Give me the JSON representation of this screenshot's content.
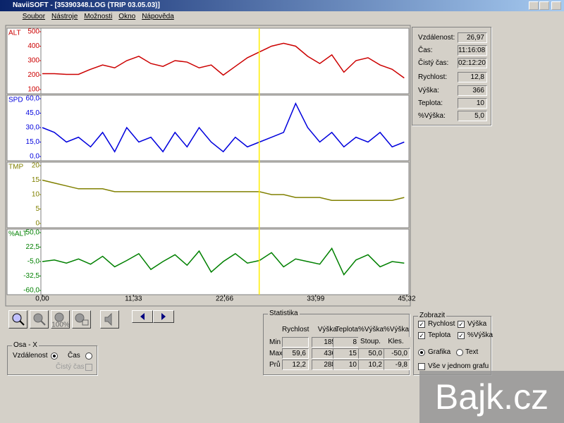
{
  "window": {
    "title": "NaviiSOFT - [35390348.LOG (TRIP 03.05.03)]"
  },
  "menu": [
    "Soubor",
    "Nástroje",
    "Možnosti",
    "Okno",
    "Nápověda"
  ],
  "cursor": 26.97,
  "chart_data": [
    {
      "type": "line",
      "label": "ALT",
      "color": "#cc0000",
      "xlim": [
        0,
        45.32
      ],
      "ylim": [
        100,
        500
      ],
      "yticks": [
        100,
        200,
        300,
        400,
        500
      ],
      "x": [
        0,
        1.5,
        3,
        4.5,
        6,
        7.5,
        9,
        10.5,
        12,
        13.5,
        15,
        16.5,
        18,
        19.5,
        21,
        22.5,
        24,
        25.5,
        27,
        28.5,
        30,
        31.5,
        33,
        34.5,
        36,
        37.5,
        39,
        40.5,
        42,
        43.5,
        45
      ],
      "values": [
        210,
        210,
        205,
        205,
        240,
        270,
        250,
        300,
        330,
        280,
        260,
        300,
        290,
        250,
        270,
        200,
        260,
        320,
        360,
        400,
        420,
        400,
        330,
        280,
        340,
        220,
        300,
        320,
        270,
        240,
        180
      ]
    },
    {
      "type": "line",
      "label": "SPD",
      "color": "#0000dd",
      "xlim": [
        0,
        45.32
      ],
      "ylim": [
        0,
        60
      ],
      "yticks": [
        {
          "value": 0,
          "label": "0,0"
        },
        {
          "value": 15,
          "label": "15,0"
        },
        {
          "value": 30,
          "label": "30,0"
        },
        {
          "value": 45,
          "label": "45,0"
        },
        {
          "value": 60,
          "label": "60,0"
        }
      ],
      "x": [
        0,
        1.5,
        3,
        4.5,
        6,
        7.5,
        9,
        10.5,
        12,
        13.5,
        15,
        16.5,
        18,
        19.5,
        21,
        22.5,
        24,
        25.5,
        27,
        28.5,
        30,
        31.5,
        33,
        34.5,
        36,
        37.5,
        39,
        40.5,
        42,
        43.5,
        45
      ],
      "values": [
        30,
        25,
        15,
        20,
        10,
        25,
        5,
        30,
        15,
        20,
        5,
        25,
        10,
        30,
        15,
        5,
        20,
        10,
        15,
        20,
        25,
        55,
        30,
        15,
        25,
        10,
        20,
        15,
        25,
        10,
        15
      ]
    },
    {
      "type": "line",
      "label": "TMP",
      "color": "#808000",
      "xlim": [
        0,
        45.32
      ],
      "ylim": [
        0,
        20
      ],
      "yticks": [
        0,
        5,
        10,
        15,
        20
      ],
      "x": [
        0,
        1.5,
        3,
        4.5,
        6,
        7.5,
        9,
        10.5,
        12,
        13.5,
        15,
        16.5,
        18,
        19.5,
        21,
        22.5,
        24,
        25.5,
        27,
        28.5,
        30,
        31.5,
        33,
        34.5,
        36,
        37.5,
        39,
        40.5,
        42,
        43.5,
        45
      ],
      "values": [
        15,
        14,
        13,
        12,
        12,
        12,
        11,
        11,
        11,
        11,
        11,
        11,
        11,
        11,
        11,
        11,
        11,
        11,
        11,
        10,
        10,
        9,
        9,
        9,
        8,
        8,
        8,
        8,
        8,
        8,
        9
      ]
    },
    {
      "type": "line",
      "label": "%ALT",
      "color": "#008000",
      "xlim": [
        0,
        45.32
      ],
      "ylim": [
        -60,
        50
      ],
      "yticks": [
        {
          "value": -60,
          "label": "-60,0"
        },
        {
          "value": -32.5,
          "label": "-32,5"
        },
        {
          "value": -5,
          "label": "-5,0"
        },
        {
          "value": 22.5,
          "label": "22,5"
        },
        {
          "value": 50,
          "label": "50,0"
        }
      ],
      "xticks": [
        {
          "value": 0,
          "label": "0,00"
        },
        {
          "value": 11.33,
          "label": "11,33"
        },
        {
          "value": 22.66,
          "label": "22,66"
        },
        {
          "value": 33.99,
          "label": "33,99"
        },
        {
          "value": 45.32,
          "label": "45,32"
        }
      ],
      "x": [
        0,
        1.5,
        3,
        4.5,
        6,
        7.5,
        9,
        10.5,
        12,
        13.5,
        15,
        16.5,
        18,
        19.5,
        21,
        22.5,
        24,
        25.5,
        27,
        28.5,
        30,
        31.5,
        33,
        34.5,
        36,
        37.5,
        39,
        40.5,
        42,
        43.5,
        45
      ],
      "values": [
        -5,
        -2,
        -8,
        0,
        -10,
        5,
        -15,
        -3,
        10,
        -20,
        -5,
        8,
        -12,
        15,
        -25,
        -5,
        10,
        -8,
        -3,
        12,
        -15,
        0,
        -5,
        -10,
        20,
        -30,
        -2,
        8,
        -15,
        -5,
        -8
      ]
    }
  ],
  "info": [
    {
      "label": "Vzdálenost:",
      "value": "26,97"
    },
    {
      "label": "Čas:",
      "value": "11:16:08"
    },
    {
      "label": "Čistý čas:",
      "value": "02:12:20"
    },
    {
      "label": "Rychlost:",
      "value": "12,8"
    },
    {
      "label": "Výška:",
      "value": "366"
    },
    {
      "label": "Teplota:",
      "value": "10"
    },
    {
      "label": "%Výška:",
      "value": "5,0"
    }
  ],
  "toolbar": {
    "zoom_label": "100%"
  },
  "axis_x": {
    "title": "Osa - X",
    "distance": "Vzdálenost",
    "time": "Čas",
    "net_time": "Čistý čas"
  },
  "statistics": {
    "title": "Statistika",
    "columns": [
      "Rychlost",
      "Výška",
      "Teplota",
      "%Výška",
      "%Výška"
    ],
    "rows": [
      {
        "label": "Min",
        "cells": [
          null,
          "185",
          "8",
          "Stoup.",
          "Kles."
        ]
      },
      {
        "label": "Max",
        "cells": [
          "59,6",
          "436",
          "15",
          "50,0",
          "-50,0"
        ]
      },
      {
        "label": "Prů",
        "cells": [
          "12,2",
          "288",
          "10",
          "10,2",
          "-9,8"
        ]
      }
    ]
  },
  "display": {
    "title": "Zobrazit",
    "checks": [
      {
        "label": "Rychlost",
        "checked": true
      },
      {
        "label": "Výška",
        "checked": true
      },
      {
        "label": "Teplota",
        "checked": true
      },
      {
        "label": "%Výška",
        "checked": true
      }
    ],
    "graph": "Grafika",
    "text": "Text",
    "all_in_one": "Vše v jednom grafu"
  },
  "watermark": "Bajk.cz"
}
